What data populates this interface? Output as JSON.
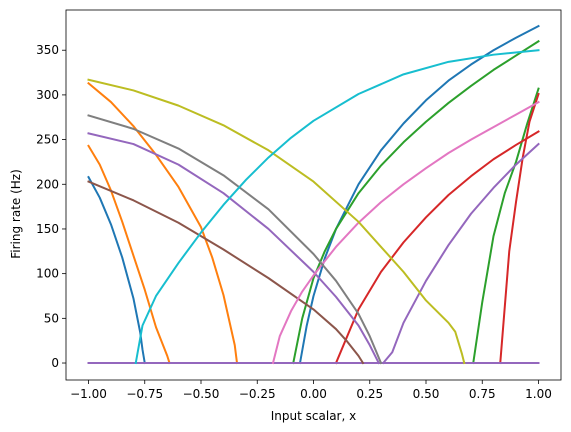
{
  "chart_data": {
    "type": "line",
    "xlabel": "Input scalar, x",
    "ylabel": "Firing rate (Hz)",
    "xlim": [
      -1.1,
      1.1
    ],
    "ylim": [
      -19,
      395
    ],
    "xticks": [
      "-1.00",
      "-0.75",
      "-0.50",
      "-0.25",
      "0.00",
      "0.25",
      "0.50",
      "0.75",
      "1.00"
    ],
    "yticks": [
      "0",
      "50",
      "100",
      "150",
      "200",
      "250",
      "300",
      "350"
    ],
    "grid": false,
    "legend": "none",
    "series": [
      {
        "color": "#1f77b4",
        "x": [
          -1.0,
          -0.79,
          -0.06
        ],
        "y": [
          0,
          0,
          0
        ]
      },
      {
        "color": "#1f77b4",
        "x": [
          -0.06,
          -0.03,
          0.0,
          0.05,
          0.1,
          0.2,
          0.3,
          0.4,
          0.5,
          0.6,
          0.7,
          0.8,
          0.9,
          1.0
        ],
        "y": [
          0,
          42,
          75,
          117,
          150,
          200,
          238,
          268,
          294,
          316,
          334,
          350,
          364,
          377
        ]
      },
      {
        "color": "#1f77b4",
        "x": [
          -1.0,
          -0.95,
          -0.9,
          -0.85,
          -0.8,
          -0.77,
          -0.76,
          -0.75
        ],
        "y": [
          208,
          185,
          155,
          118,
          72,
          34,
          15,
          0
        ]
      },
      {
        "color": "#ff7f0e",
        "x": [
          -1.0,
          -0.95,
          -0.9,
          -0.85,
          -0.8,
          -0.75,
          -0.7,
          -0.65,
          -0.64
        ],
        "y": [
          243,
          222,
          193,
          158,
          120,
          82,
          40,
          8,
          0
        ]
      },
      {
        "color": "#ff7f0e",
        "x": [
          -1.0,
          -0.9,
          -0.8,
          -0.7,
          -0.6,
          -0.5,
          -0.45,
          -0.4,
          -0.35,
          -0.34
        ],
        "y": [
          313,
          292,
          265,
          233,
          197,
          152,
          118,
          76,
          20,
          0
        ]
      },
      {
        "color": "#ff7f0e",
        "x": [
          -0.34,
          0.35
        ],
        "y": [
          0,
          0
        ]
      },
      {
        "color": "#2ca02c",
        "x": [
          -0.09,
          -0.05,
          0.0,
          0.05,
          0.1,
          0.2,
          0.3,
          0.4,
          0.5,
          0.6,
          0.7,
          0.8,
          0.9,
          1.0
        ],
        "y": [
          0,
          50,
          95,
          125,
          150,
          190,
          221,
          247,
          270,
          291,
          310,
          328,
          344,
          360
        ]
      },
      {
        "color": "#2ca02c",
        "x": [
          0.71,
          0.75,
          0.8,
          0.85,
          0.9,
          0.95,
          1.0
        ],
        "y": [
          0,
          68,
          142,
          190,
          225,
          268,
          307
        ]
      },
      {
        "color": "#d62728",
        "x": [
          0.1,
          0.2,
          0.3,
          0.4,
          0.5,
          0.6,
          0.7,
          0.8,
          0.9,
          1.0
        ],
        "y": [
          0,
          60,
          102,
          135,
          163,
          188,
          209,
          228,
          244,
          259
        ]
      },
      {
        "color": "#d62728",
        "x": [
          0.83,
          0.87,
          0.9,
          0.93,
          0.96,
          1.0
        ],
        "y": [
          0,
          125,
          180,
          230,
          270,
          301
        ]
      },
      {
        "color": "#d62728",
        "x": [
          -1.0,
          1.0
        ],
        "y": [
          0,
          0
        ]
      },
      {
        "color": "#9467bd",
        "x": [
          -1.0,
          -0.8,
          -0.6,
          -0.4,
          -0.2,
          0.0,
          0.1,
          0.2,
          0.25,
          0.29
        ],
        "y": [
          257,
          245,
          222,
          190,
          150,
          102,
          74,
          42,
          20,
          0
        ]
      },
      {
        "color": "#9467bd",
        "x": [
          0.31,
          0.35,
          0.4,
          0.5,
          0.6,
          0.7,
          0.8,
          0.9,
          1.0
        ],
        "y": [
          0,
          12,
          45,
          92,
          132,
          167,
          196,
          222,
          245
        ]
      },
      {
        "color": "#9467bd",
        "x": [
          -1.0,
          1.0
        ],
        "y": [
          0,
          0
        ]
      },
      {
        "color": "#8c564b",
        "x": [
          -1.0,
          -0.8,
          -0.6,
          -0.4,
          -0.2,
          0.0,
          0.1,
          0.15,
          0.2,
          0.22
        ],
        "y": [
          203,
          182,
          157,
          127,
          95,
          60,
          38,
          24,
          8,
          0
        ]
      },
      {
        "color": "#e377c2",
        "x": [
          -0.18,
          -0.15,
          -0.1,
          -0.05,
          0.0,
          0.1,
          0.2,
          0.3,
          0.4,
          0.5,
          0.6,
          0.7,
          0.8,
          0.9,
          1.0
        ],
        "y": [
          0,
          30,
          58,
          80,
          98,
          130,
          157,
          180,
          200,
          218,
          235,
          250,
          264,
          278,
          292
        ]
      },
      {
        "color": "#7f7f7f",
        "x": [
          -1.0,
          -0.8,
          -0.6,
          -0.4,
          -0.2,
          0.0,
          0.1,
          0.2,
          0.25,
          0.28,
          0.3
        ],
        "y": [
          277,
          262,
          240,
          210,
          172,
          122,
          92,
          55,
          30,
          12,
          0
        ]
      },
      {
        "color": "#bcbd22",
        "x": [
          -1.0,
          -0.8,
          -0.6,
          -0.4,
          -0.2,
          0.0,
          0.2,
          0.4,
          0.5,
          0.6,
          0.63,
          0.66,
          0.67
        ],
        "y": [
          317,
          305,
          288,
          266,
          238,
          203,
          158,
          102,
          70,
          45,
          35,
          10,
          0
        ]
      },
      {
        "color": "#17becf",
        "x": [
          -0.79,
          -0.76,
          -0.7,
          -0.6,
          -0.5,
          -0.4,
          -0.3,
          -0.2,
          -0.1,
          0.0,
          0.2,
          0.4,
          0.6,
          0.8,
          1.0
        ],
        "y": [
          0,
          42,
          75,
          112,
          146,
          177,
          205,
          230,
          252,
          271,
          301,
          323,
          337,
          345,
          350
        ]
      }
    ]
  }
}
